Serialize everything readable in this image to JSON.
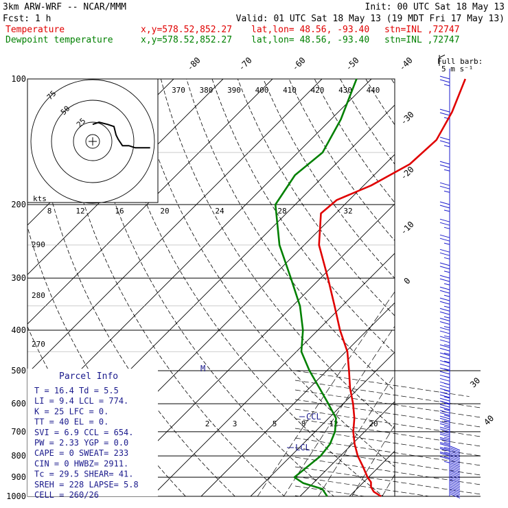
{
  "header": {
    "model": "3km ARW-WRF -- NCAR/MMM",
    "init": "Init: 00 UTC Sat 18 May 13",
    "fcst": "Fcst:     1 h",
    "valid": "Valid: 01 UTC Sat 18 May 13 (19 MDT Fri 17 May 13)",
    "temp_label": "Temperature",
    "dew_label": "Dewpoint temperature",
    "xy": "x,y=578.52,852.27",
    "latlon": "lat,lon= 48.56, -93.40",
    "stn": "stn=INL ,72747"
  },
  "colors": {
    "temperature": "#e00000",
    "dewpoint": "#008000",
    "index_text": "#1a1a8c",
    "barbs": "#1a1acc"
  },
  "pressure_labels": [
    "100",
    "200",
    "300",
    "400",
    "500",
    "600",
    "700",
    "800",
    "900",
    "1000"
  ],
  "isotherm_labels": [
    "-80",
    "-70",
    "-60",
    "-50",
    "-40",
    "-30",
    "-20",
    "-10",
    "0"
  ],
  "theta_labels": [
    "370",
    "380",
    "390",
    "400",
    "410",
    "420",
    "430",
    "440"
  ],
  "theta_side_labels": [
    "290",
    "280",
    "270"
  ],
  "mixing_labels_upper": [
    "8",
    "12",
    "16",
    "20",
    "24",
    "28",
    "32"
  ],
  "mixing_labels_lower": [
    "2",
    "3",
    "5",
    "8",
    "12",
    "20"
  ],
  "kts_label": "kts",
  "hodograph_rings": [
    "75",
    "50",
    "25"
  ],
  "full_barb": "Full barb:",
  "full_barb_speed": "5 m s⁻¹",
  "speed_scale": [
    "30",
    "40"
  ],
  "marker_M": "M",
  "ccl_label": "CCL",
  "lcl_label": "LCL",
  "parcel_title": "Parcel Info",
  "parcel_rows": [
    "T  =    16.4  Td =   5.5",
    "LI =     9.4  LCL = 774.",
    "K  =      25  LFC =   0.",
    "TT =      40  EL  =   0.",
    "SVI =    6.9  CCL = 654.",
    "PW =    2.33  YGP =  0.0",
    "CAPE =     0  SWEAT=  233",
    "CIN =      0  HWBZ= 2911.",
    "Tc =    29.5  SHEAR=  41.",
    "SREH =   228  LAPSE=  5.8",
    "CELL = 260/26"
  ],
  "chart_data": {
    "type": "line",
    "title": "",
    "xlabel": "",
    "ylabel": "",
    "y_axis": "pressure (hPa, log scale)",
    "ylim": [
      1000,
      100
    ],
    "series": [
      {
        "name": "Temperature",
        "x_units": "C",
        "points": [
          [
            1000,
            16.4
          ],
          [
            975,
            14
          ],
          [
            950,
            12.5
          ],
          [
            925,
            11.5
          ],
          [
            900,
            9.8
          ],
          [
            850,
            6.8
          ],
          [
            800,
            3.5
          ],
          [
            750,
            0.5
          ],
          [
            700,
            -2.3
          ],
          [
            650,
            -4.8
          ],
          [
            600,
            -8.0
          ],
          [
            550,
            -11.8
          ],
          [
            500,
            -15.5
          ],
          [
            450,
            -19.7
          ],
          [
            400,
            -25.5
          ],
          [
            350,
            -31.5
          ],
          [
            300,
            -38.5
          ],
          [
            250,
            -47.0
          ],
          [
            210,
            -53.0
          ],
          [
            195,
            -52.5
          ],
          [
            180,
            -48.5
          ],
          [
            160,
            -45.0
          ],
          [
            140,
            -44.5
          ],
          [
            120,
            -47.0
          ],
          [
            100,
            -51.0
          ]
        ]
      },
      {
        "name": "Dewpoint temperature",
        "x_units": "C",
        "points": [
          [
            1000,
            5.5
          ],
          [
            960,
            3.0
          ],
          [
            930,
            -2.0
          ],
          [
            900,
            -5.0
          ],
          [
            850,
            -4.5
          ],
          [
            800,
            -4.0
          ],
          [
            750,
            -4.5
          ],
          [
            700,
            -6.0
          ],
          [
            650,
            -8.5
          ],
          [
            600,
            -13.0
          ],
          [
            550,
            -18.0
          ],
          [
            500,
            -23.5
          ],
          [
            450,
            -29.0
          ],
          [
            400,
            -33.0
          ],
          [
            350,
            -38.5
          ],
          [
            300,
            -46.0
          ],
          [
            250,
            -55.0
          ],
          [
            200,
            -64.0
          ],
          [
            170,
            -66.0
          ],
          [
            150,
            -65.0
          ],
          [
            125,
            -68.0
          ],
          [
            100,
            -73.0
          ]
        ]
      }
    ],
    "hodograph_trace_kt": [
      [
        0,
        8
      ],
      [
        3,
        9
      ],
      [
        7,
        8
      ],
      [
        10,
        7
      ],
      [
        11,
        3
      ],
      [
        12,
        1
      ],
      [
        14,
        -2
      ],
      [
        17,
        -2
      ],
      [
        20,
        -3
      ],
      [
        23,
        -3
      ],
      [
        27,
        -3
      ]
    ],
    "grid": true
  }
}
